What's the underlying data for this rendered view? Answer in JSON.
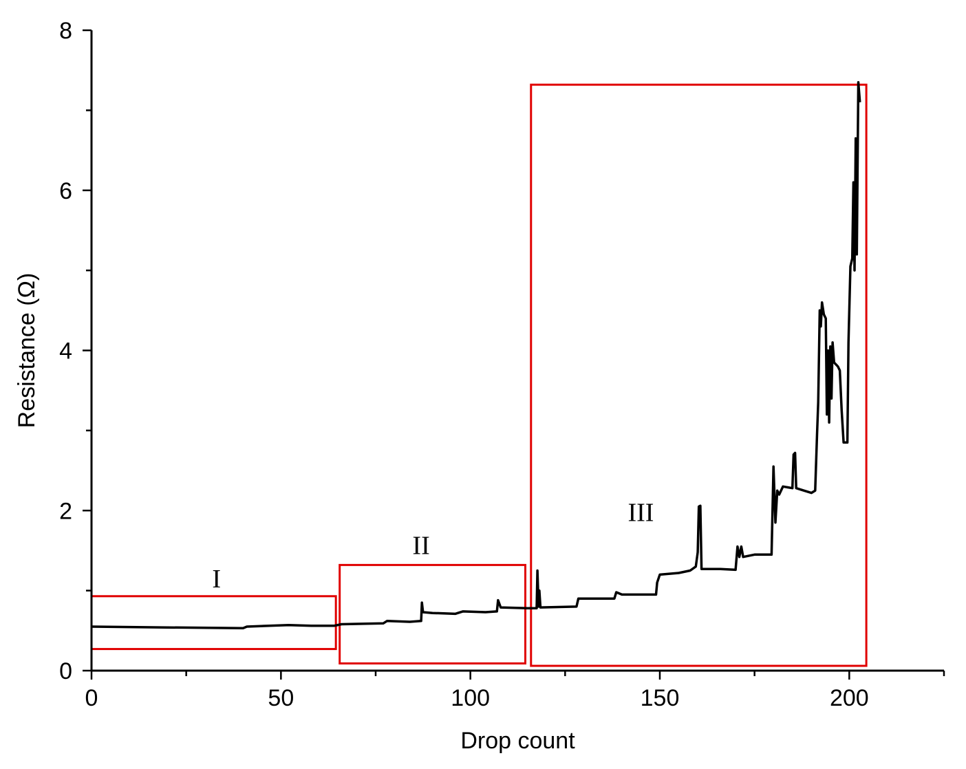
{
  "chart_data": {
    "type": "line",
    "xlabel": "Drop count",
    "ylabel": "Resistance (Ω)",
    "xlim": [
      0,
      225
    ],
    "ylim": [
      0,
      8
    ],
    "x_ticks": [
      0,
      50,
      100,
      150,
      200
    ],
    "y_ticks": [
      0,
      2,
      4,
      6,
      8
    ],
    "x_tick_labels": [
      "0",
      "50",
      "100",
      "150",
      "200"
    ],
    "y_tick_labels": [
      "0",
      "2",
      "4",
      "6",
      "8"
    ],
    "grid": false,
    "line_color": "#000000",
    "region_color": "#e00000",
    "series": [
      {
        "points": [
          [
            0,
            0.55
          ],
          [
            20,
            0.54
          ],
          [
            40,
            0.53
          ],
          [
            41,
            0.55
          ],
          [
            52,
            0.57
          ],
          [
            58,
            0.56
          ],
          [
            64,
            0.56
          ],
          [
            66,
            0.58
          ],
          [
            77,
            0.59
          ],
          [
            78,
            0.62
          ],
          [
            84,
            0.61
          ],
          [
            87,
            0.62
          ],
          [
            87.2,
            0.85
          ],
          [
            87.5,
            0.73
          ],
          [
            90,
            0.72
          ],
          [
            96,
            0.71
          ],
          [
            98,
            0.74
          ],
          [
            104,
            0.73
          ],
          [
            107,
            0.74
          ],
          [
            107.3,
            0.88
          ],
          [
            108,
            0.79
          ],
          [
            115,
            0.78
          ],
          [
            117.5,
            0.78
          ],
          [
            117.7,
            1.25
          ],
          [
            118,
            0.8
          ],
          [
            118.2,
            1.0
          ],
          [
            118.5,
            0.79
          ],
          [
            128,
            0.8
          ],
          [
            128.5,
            0.9
          ],
          [
            138,
            0.9
          ],
          [
            138.5,
            0.98
          ],
          [
            140,
            0.95
          ],
          [
            149,
            0.95
          ],
          [
            149.3,
            1.1
          ],
          [
            150,
            1.2
          ],
          [
            155,
            1.22
          ],
          [
            158,
            1.25
          ],
          [
            159.5,
            1.3
          ],
          [
            160,
            1.48
          ],
          [
            160.3,
            2.05
          ],
          [
            160.7,
            2.06
          ],
          [
            161,
            1.27
          ],
          [
            166,
            1.27
          ],
          [
            170,
            1.26
          ],
          [
            170.5,
            1.55
          ],
          [
            171,
            1.42
          ],
          [
            171.5,
            1.55
          ],
          [
            172,
            1.42
          ],
          [
            175,
            1.45
          ],
          [
            179.5,
            1.45
          ],
          [
            180,
            2.55
          ],
          [
            180.5,
            1.85
          ],
          [
            181,
            2.25
          ],
          [
            181.5,
            2.2
          ],
          [
            182.5,
            2.3
          ],
          [
            185,
            2.28
          ],
          [
            185.3,
            2.7
          ],
          [
            185.7,
            2.72
          ],
          [
            186,
            2.28
          ],
          [
            188,
            2.25
          ],
          [
            190,
            2.22
          ],
          [
            191,
            2.25
          ],
          [
            191.5,
            2.95
          ],
          [
            191.8,
            3.35
          ],
          [
            192.2,
            4.5
          ],
          [
            192.5,
            4.3
          ],
          [
            192.8,
            4.6
          ],
          [
            193.3,
            4.45
          ],
          [
            193.8,
            4.4
          ],
          [
            194.1,
            3.2
          ],
          [
            194.4,
            4.0
          ],
          [
            194.7,
            3.1
          ],
          [
            195,
            4.05
          ],
          [
            195.3,
            3.4
          ],
          [
            195.6,
            4.1
          ],
          [
            196,
            3.85
          ],
          [
            197,
            3.8
          ],
          [
            197.5,
            3.75
          ],
          [
            198,
            3.25
          ],
          [
            198.5,
            2.85
          ],
          [
            199.5,
            2.85
          ],
          [
            199.8,
            4.1
          ],
          [
            200.3,
            5.05
          ],
          [
            200.8,
            5.15
          ],
          [
            201.1,
            6.1
          ],
          [
            201.4,
            5.0
          ],
          [
            201.7,
            6.65
          ],
          [
            202,
            5.2
          ],
          [
            202.4,
            7.35
          ],
          [
            202.8,
            7.1
          ]
        ]
      }
    ],
    "regions": [
      {
        "label": "I",
        "x": [
          0,
          64.5
        ],
        "y": [
          0.27,
          0.93
        ]
      },
      {
        "label": "II",
        "x": [
          65.5,
          114.5
        ],
        "y": [
          0.09,
          1.32
        ]
      },
      {
        "label": "III",
        "x": [
          116,
          204.5
        ],
        "y": [
          0.06,
          7.32
        ]
      }
    ]
  }
}
